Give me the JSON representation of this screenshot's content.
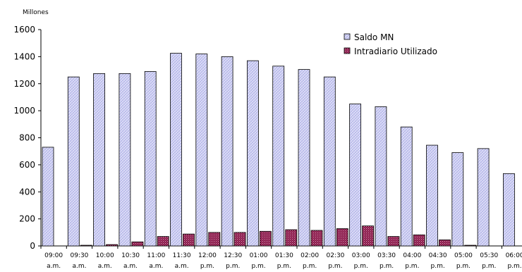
{
  "chart_data": {
    "type": "bar",
    "title": "",
    "unit_label": "Millones",
    "ylim": [
      0,
      1600
    ],
    "yticks": [
      0,
      200,
      400,
      600,
      800,
      1000,
      1200,
      1400,
      1600
    ],
    "categories": [
      [
        "09:00",
        "a.m."
      ],
      [
        "09:30",
        "a.m."
      ],
      [
        "10:00",
        "a.m."
      ],
      [
        "10:30",
        "a.m."
      ],
      [
        "11:00",
        "a.m."
      ],
      [
        "11:30",
        "a.m."
      ],
      [
        "12:00",
        "p.m."
      ],
      [
        "12:30",
        "p.m."
      ],
      [
        "01:00",
        "p.m."
      ],
      [
        "01:30",
        "p.m."
      ],
      [
        "02:00",
        "p.m."
      ],
      [
        "02:30",
        "p.m."
      ],
      [
        "03:00",
        "p.m."
      ],
      [
        "03:30",
        "p.m."
      ],
      [
        "04:00",
        "p.m."
      ],
      [
        "04:30",
        "p.m."
      ],
      [
        "05:00",
        "p.m."
      ],
      [
        "05:30",
        "p.m."
      ],
      [
        "06:00",
        "p.m."
      ]
    ],
    "series": [
      {
        "name": "Saldo MN",
        "color": "#c8cbf2",
        "values": [
          730,
          1250,
          1275,
          1275,
          1290,
          1425,
          1420,
          1400,
          1370,
          1330,
          1305,
          1250,
          1050,
          1030,
          880,
          745,
          690,
          720,
          535
        ]
      },
      {
        "name": "Intradiario Utilizado",
        "color": "#8b1a4a",
        "values": [
          0,
          5,
          10,
          30,
          70,
          88,
          100,
          100,
          108,
          120,
          115,
          128,
          148,
          70,
          82,
          45,
          5,
          0,
          0
        ]
      }
    ],
    "legend_position": "top-right",
    "grid": false
  }
}
